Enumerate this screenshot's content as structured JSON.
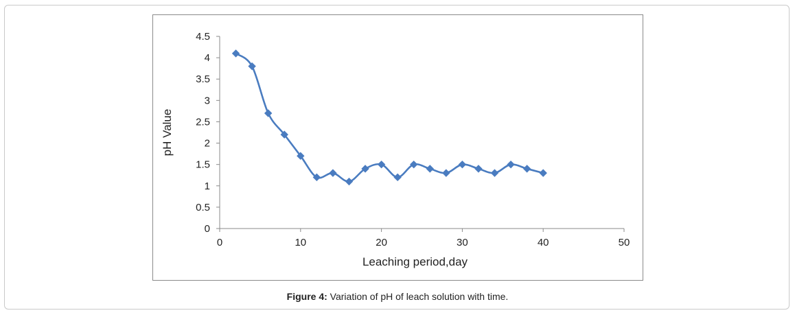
{
  "caption": {
    "label": "Figure 4:",
    "text": "Variation of pH of leach solution with time."
  },
  "chart_data": {
    "type": "line",
    "title": "",
    "xlabel": "Leaching period,day",
    "ylabel": "pH Value",
    "xlim": [
      0,
      50
    ],
    "ylim": [
      0,
      4.5
    ],
    "xticks": [
      0,
      10,
      20,
      30,
      40,
      50
    ],
    "yticks": [
      0,
      0.5,
      1,
      1.5,
      2,
      2.5,
      3,
      3.5,
      4,
      4.5
    ],
    "ytick_labels": [
      "0",
      "0.5",
      "1",
      "1.5",
      "2",
      "2.5",
      "3",
      "3.5",
      "4",
      "4.5"
    ],
    "xtick_labels": [
      "0",
      "10",
      "20",
      "30",
      "40",
      "50"
    ],
    "grid": false,
    "legend": "none",
    "color": "#4a7cc0",
    "marker": "diamond",
    "smooth": true,
    "series": [
      {
        "x": [
          2,
          4,
          6,
          8,
          10,
          12,
          14,
          16,
          18,
          20,
          22,
          24,
          26,
          28,
          30,
          32,
          34,
          36,
          38,
          40
        ],
        "y": [
          4.1,
          3.8,
          2.7,
          2.2,
          1.7,
          1.2,
          1.3,
          1.1,
          1.4,
          1.5,
          1.2,
          1.5,
          1.4,
          1.3,
          1.5,
          1.4,
          1.3,
          1.5,
          1.4,
          1.3
        ]
      }
    ]
  }
}
